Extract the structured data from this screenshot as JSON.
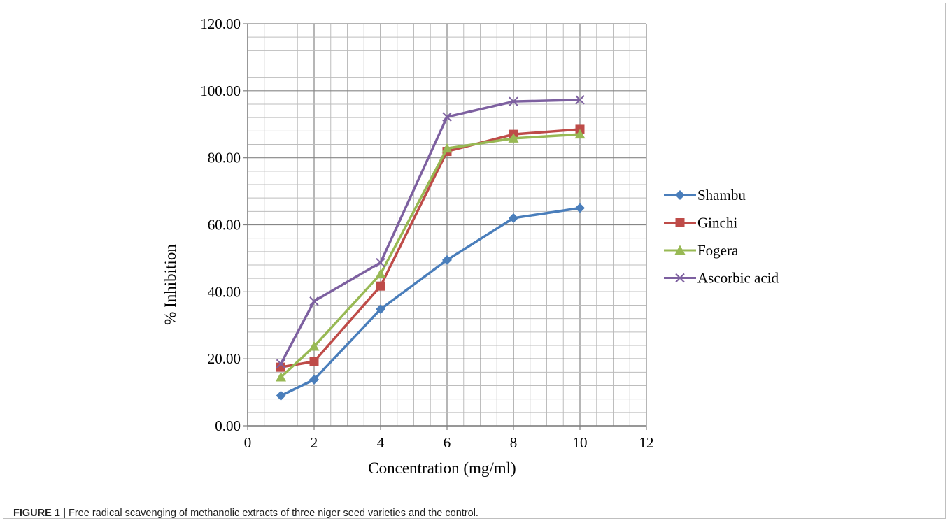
{
  "chart_data": {
    "type": "line",
    "title": "",
    "xlabel": "Concentration (mg/ml)",
    "ylabel": "% Inhibition",
    "xlim": [
      0,
      12
    ],
    "ylim": [
      0,
      120
    ],
    "x_ticks": [
      "0",
      "2",
      "4",
      "6",
      "8",
      "10",
      "12"
    ],
    "y_ticks": [
      "0.00",
      "20.00",
      "40.00",
      "60.00",
      "80.00",
      "100.00",
      "120.00"
    ],
    "grid": true,
    "legend_position": "right",
    "x": [
      1,
      2,
      4,
      6,
      8,
      10
    ],
    "series": [
      {
        "name": "Shambu",
        "color": "#4a7ebb",
        "marker": "diamond",
        "values": [
          9.0,
          13.8,
          34.8,
          49.5,
          62.0,
          65.0
        ]
      },
      {
        "name": "Ginchi",
        "color": "#be4b48",
        "marker": "square",
        "values": [
          17.5,
          19.2,
          41.7,
          81.9,
          87.0,
          88.5
        ]
      },
      {
        "name": "Fogera",
        "color": "#98b954",
        "marker": "triangle",
        "values": [
          14.5,
          23.7,
          45.3,
          82.8,
          85.8,
          87.0
        ]
      },
      {
        "name": "Ascorbic acid",
        "color": "#7d60a0",
        "marker": "x",
        "values": [
          18.5,
          37.2,
          48.7,
          92.2,
          96.8,
          97.3
        ]
      }
    ]
  },
  "caption": {
    "label": "FIGURE 1 |",
    "text": " Free radical scavenging of methanolic extracts of three niger seed varieties and the control."
  }
}
